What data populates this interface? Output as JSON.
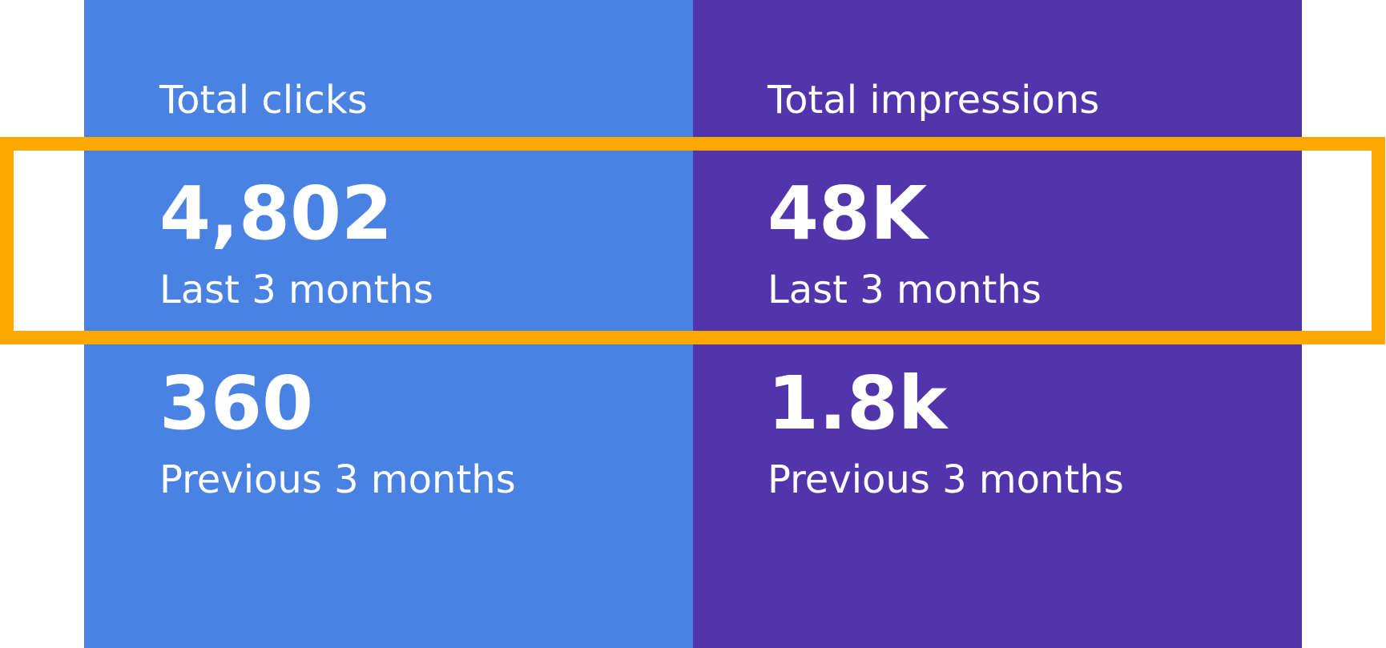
{
  "cards": [
    {
      "title": "Total clicks",
      "metrics": [
        {
          "value": "4,802",
          "label": "Last 3 months"
        },
        {
          "value": "360",
          "label": "Previous 3 months"
        }
      ]
    },
    {
      "title": "Total impressions",
      "metrics": [
        {
          "value": "48K",
          "label": "Last 3 months"
        },
        {
          "value": "1.8k",
          "label": "Previous 3 months"
        }
      ]
    }
  ]
}
